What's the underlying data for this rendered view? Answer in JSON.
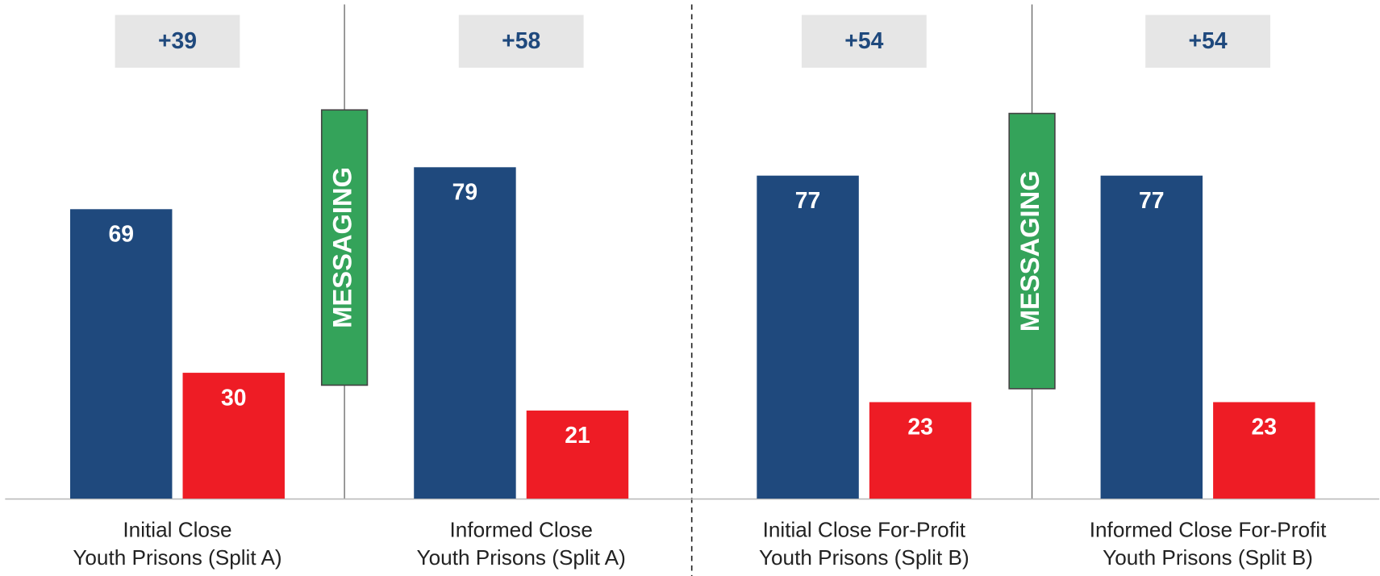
{
  "chart_data": {
    "type": "bar",
    "categories": [
      [
        "Initial Close",
        "Youth Prisons (Split A)"
      ],
      [
        "Informed Close",
        "Youth Prisons (Split A)"
      ],
      [
        "Initial Close For-Profit",
        "Youth Prisons (Split B)"
      ],
      [
        "Informed Close For-Profit",
        "Youth Prisons (Split B)"
      ]
    ],
    "series": [
      {
        "color": "#1f497d",
        "values": [
          69,
          79,
          77,
          77
        ]
      },
      {
        "color": "#ee1c25",
        "values": [
          30,
          21,
          23,
          23
        ]
      }
    ],
    "margins": {
      "values": [
        39,
        58,
        54,
        54
      ],
      "value_labels": [
        "+39",
        "+58",
        "+54",
        "+54"
      ],
      "color": "#1f497d"
    },
    "annotations": [
      "MESSAGING",
      "MESSAGING"
    ],
    "annotation_color": "#34a35a",
    "ylim": [
      0,
      100
    ]
  }
}
